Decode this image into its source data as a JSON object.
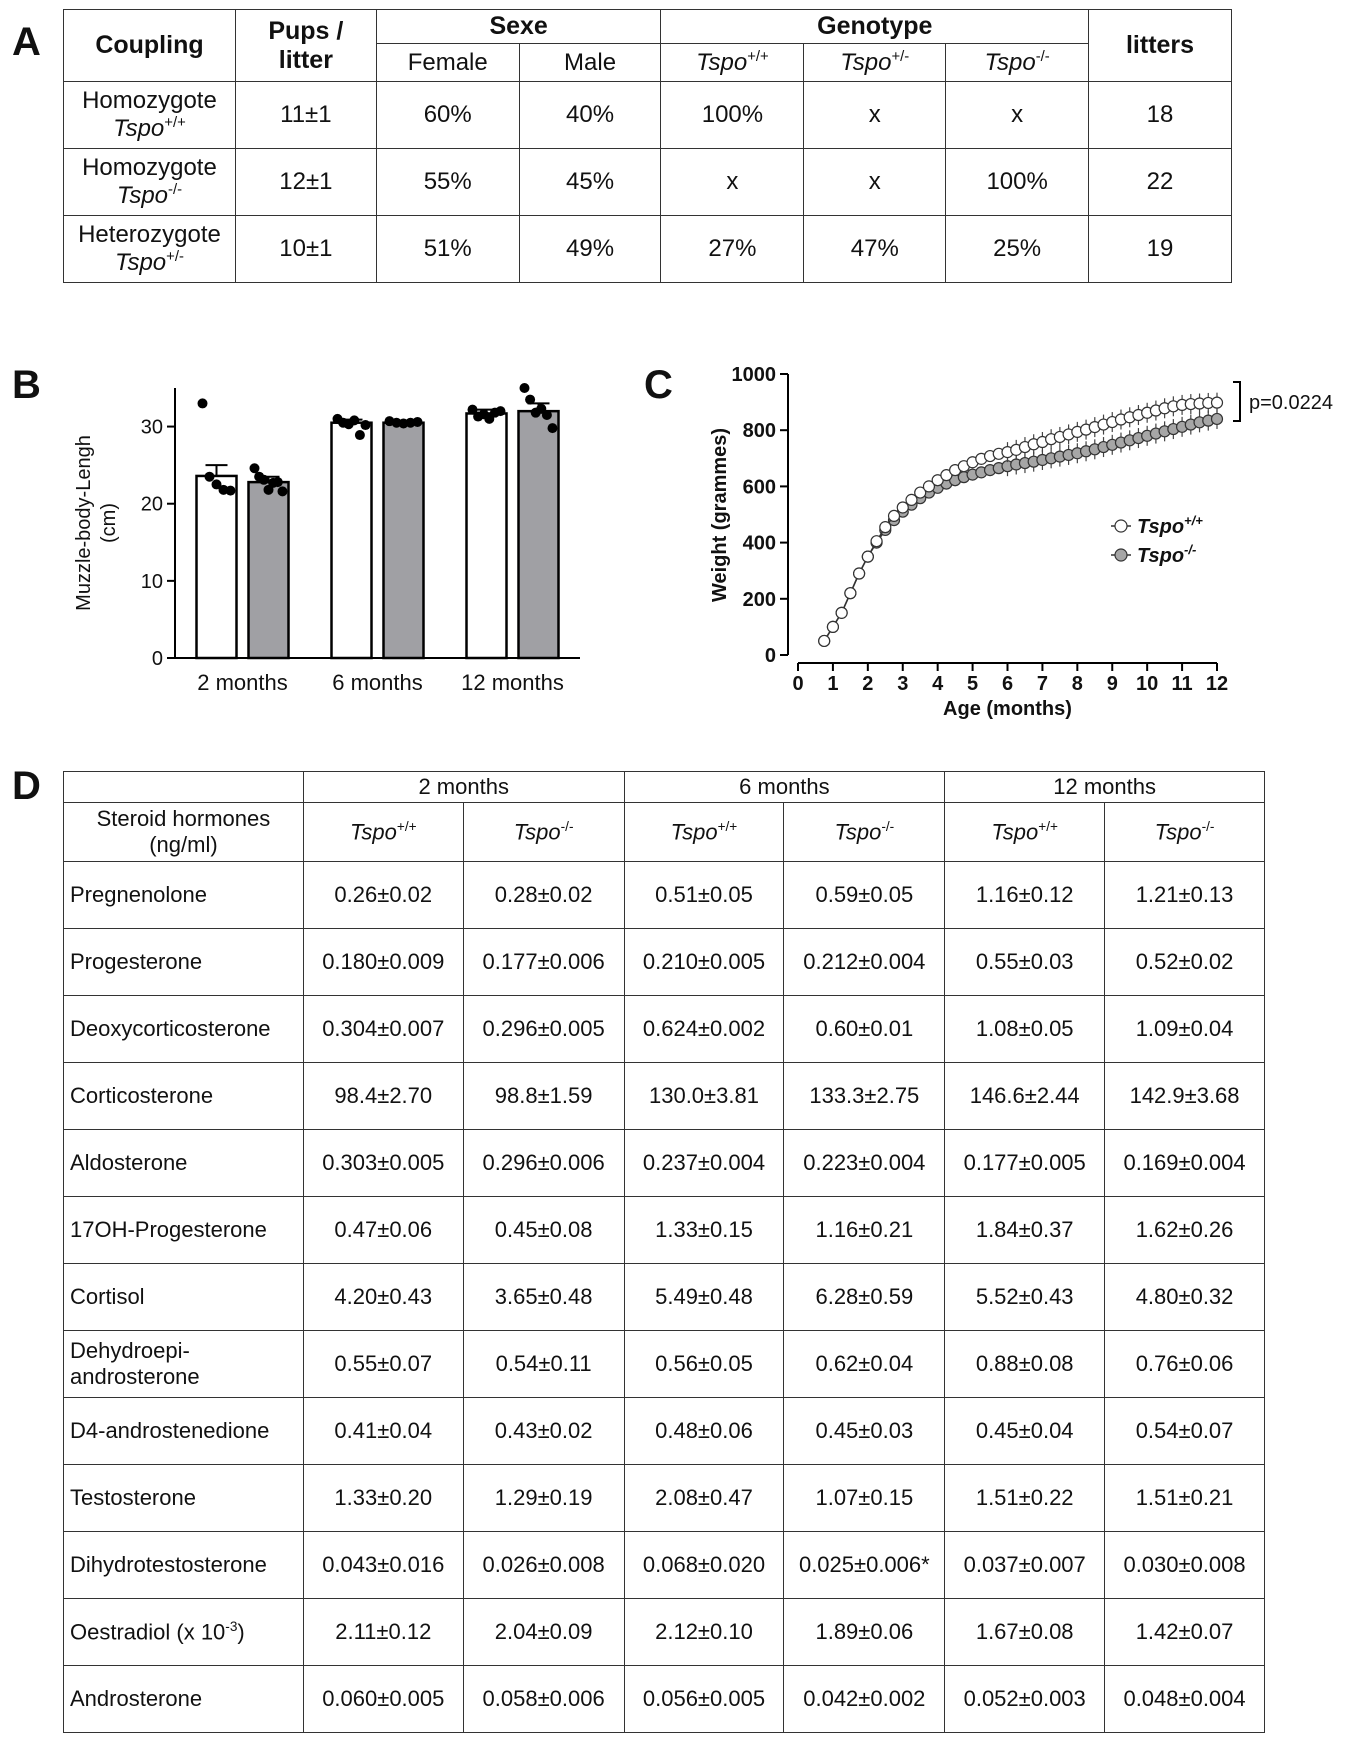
{
  "panels": {
    "a": "A",
    "b": "B",
    "c": "C",
    "d": "D"
  },
  "tableA": {
    "headers": {
      "coupling": "Coupling",
      "pups_line1": "Pups /",
      "pups_line2": "litter",
      "sexe": "Sexe",
      "female": "Female",
      "male": "Male",
      "genotype": "Genotype",
      "geno_wt": "Tspo",
      "geno_wt_sup": "+/+",
      "geno_het": "Tspo",
      "geno_het_sup": "+/-",
      "geno_ko": "Tspo",
      "geno_ko_sup": "-/-",
      "litters": "litters"
    },
    "rows": [
      {
        "line1": "Homozygote",
        "line2": "Tspo",
        "sup": "+/+",
        "pups": "11±1",
        "female": "60%",
        "male": "40%",
        "wt": "100%",
        "het": "x",
        "ko": "x",
        "litters": "18"
      },
      {
        "line1": "Homozygote",
        "line2": "Tspo",
        "sup": "-/-",
        "pups": "12±1",
        "female": "55%",
        "male": "45%",
        "wt": "x",
        "het": "x",
        "ko": "100%",
        "litters": "22"
      },
      {
        "line1": "Heterozygote",
        "line2": "Tspo",
        "sup": "+/-",
        "pups": "10±1",
        "female": "51%",
        "male": "49%",
        "wt": "27%",
        "het": "47%",
        "ko": "25%",
        "litters": "19"
      }
    ]
  },
  "chart_data": [
    {
      "type": "bar",
      "ylabel_line1": "Muzzle-body-Lengh",
      "ylabel_line2": "(cm)",
      "categories": [
        "2 months",
        "6 months",
        "12 months"
      ],
      "ylim": [
        0,
        35
      ],
      "yticks": [
        "0",
        "10",
        "20",
        "30"
      ],
      "series": [
        {
          "values": [
            23.6,
            30.5,
            31.7
          ],
          "errors": [
            1.4,
            0.4,
            0.5
          ],
          "color": "#ffffff",
          "points": [
            [
              33.0,
              23.5,
              22.5,
              21.8,
              21.7
            ],
            [
              31.0,
              30.5,
              30.3,
              30.8,
              28.9,
              30.2
            ],
            [
              32.2,
              31.3,
              31.6,
              31.0,
              31.8,
              32.0
            ]
          ]
        },
        {
          "values": [
            22.8,
            30.5,
            32.0
          ],
          "errors": [
            0.7,
            0.2,
            1.0
          ],
          "color": "#a0a0a4",
          "points": [
            [
              24.6,
              23.5,
              23.1,
              21.8,
              22.7,
              22.8,
              21.6
            ],
            [
              30.7,
              30.5,
              30.4,
              30.5,
              30.6
            ],
            [
              35.0,
              33.5,
              31.8,
              32.3,
              31.5,
              29.8
            ]
          ]
        }
      ]
    },
    {
      "type": "line",
      "xlabel": "Age (months)",
      "ylabel": "Weight (grammes)",
      "xlim": [
        0,
        12
      ],
      "ylim": [
        0,
        1000
      ],
      "xticks": [
        "0",
        "1",
        "2",
        "3",
        "4",
        "5",
        "6",
        "7",
        "8",
        "9",
        "10",
        "11",
        "12"
      ],
      "yticks": [
        "0",
        "200",
        "400",
        "600",
        "800",
        "1000"
      ],
      "annotation": "p=0.0224",
      "series": [
        {
          "name": "Tspo",
          "name_sup": "+/+",
          "fill": "#ffffff",
          "x": [
            0.75,
            1.0,
            1.25,
            1.5,
            1.75,
            2.0,
            2.25,
            2.5,
            2.75,
            3.0,
            3.25,
            3.5,
            3.75,
            4.0,
            4.25,
            4.5,
            4.75,
            5.0,
            5.25,
            5.5,
            5.75,
            6.0,
            6.25,
            6.5,
            6.75,
            7.0,
            7.25,
            7.5,
            7.75,
            8.0,
            8.25,
            8.5,
            8.75,
            9.0,
            9.25,
            9.5,
            9.75,
            10.0,
            10.25,
            10.5,
            10.75,
            11.0,
            11.25,
            11.5,
            11.75,
            12.0
          ],
          "y": [
            50,
            100,
            150,
            220,
            290,
            350,
            405,
            455,
            495,
            525,
            552,
            578,
            600,
            622,
            640,
            658,
            672,
            686,
            698,
            708,
            716,
            722,
            730,
            740,
            750,
            758,
            768,
            776,
            785,
            794,
            802,
            811,
            820,
            829,
            838,
            846,
            854,
            862,
            870,
            878,
            885,
            890,
            893,
            895,
            897,
            898
          ]
        },
        {
          "name": "Tspo",
          "name_sup": "-/-",
          "fill": "#a6a6a6",
          "x": [
            0.75,
            1.0,
            1.25,
            1.5,
            1.75,
            2.0,
            2.25,
            2.5,
            2.75,
            3.0,
            3.25,
            3.5,
            3.75,
            4.0,
            4.25,
            4.5,
            4.75,
            5.0,
            5.25,
            5.5,
            5.75,
            6.0,
            6.25,
            6.5,
            6.75,
            7.0,
            7.25,
            7.5,
            7.75,
            8.0,
            8.25,
            8.5,
            8.75,
            9.0,
            9.25,
            9.5,
            9.75,
            10.0,
            10.25,
            10.5,
            10.75,
            11.0,
            11.25,
            11.5,
            11.75,
            12.0
          ],
          "y": [
            50,
            100,
            150,
            220,
            290,
            350,
            400,
            445,
            480,
            510,
            535,
            558,
            578,
            595,
            610,
            622,
            633,
            642,
            650,
            658,
            665,
            672,
            678,
            683,
            688,
            694,
            700,
            706,
            712,
            718,
            725,
            732,
            740,
            748,
            756,
            764,
            772,
            780,
            788,
            796,
            804,
            812,
            820,
            828,
            834,
            840
          ]
        }
      ]
    }
  ],
  "tableD": {
    "groups": [
      "2 months",
      "6 months",
      "12 months"
    ],
    "rowhead_line1": "Steroid hormones",
    "rowhead_line2": "(ng/ml)",
    "geno": [
      {
        "name": "Tspo",
        "sup": "+/+"
      },
      {
        "name": "Tspo",
        "sup": "-/-"
      },
      {
        "name": "Tspo",
        "sup": "+/+"
      },
      {
        "name": "Tspo",
        "sup": "-/-"
      },
      {
        "name": "Tspo",
        "sup": "+/+"
      },
      {
        "name": "Tspo",
        "sup": "-/-"
      }
    ],
    "rows": [
      {
        "name": "Pregnenolone",
        "v": [
          "0.26±0.02",
          "0.28±0.02",
          "0.51±0.05",
          "0.59±0.05",
          "1.16±0.12",
          "1.21±0.13"
        ]
      },
      {
        "name": "Progesterone",
        "v": [
          "0.180±0.009",
          "0.177±0.006",
          "0.210±0.005",
          "0.212±0.004",
          "0.55±0.03",
          "0.52±0.02"
        ]
      },
      {
        "name": "Deoxycorticosterone",
        "v": [
          "0.304±0.007",
          "0.296±0.005",
          "0.624±0.002",
          "0.60±0.01",
          "1.08±0.05",
          "1.09±0.04"
        ]
      },
      {
        "name": "Corticosterone",
        "v": [
          "98.4±2.70",
          "98.8±1.59",
          "130.0±3.81",
          "133.3±2.75",
          "146.6±2.44",
          "142.9±3.68"
        ]
      },
      {
        "name": "Aldosterone",
        "v": [
          "0.303±0.005",
          "0.296±0.006",
          "0.237±0.004",
          "0.223±0.004",
          "0.177±0.005",
          "0.169±0.004"
        ]
      },
      {
        "name": "17OH-Progesterone",
        "v": [
          "0.47±0.06",
          "0.45±0.08",
          "1.33±0.15",
          "1.16±0.21",
          "1.84±0.37",
          "1.62±0.26"
        ]
      },
      {
        "name": "Cortisol",
        "v": [
          "4.20±0.43",
          "3.65±0.48",
          "5.49±0.48",
          "6.28±0.59",
          "5.52±0.43",
          "4.80±0.32"
        ]
      },
      {
        "name": "Dehydroepi-",
        "name2": "androsterone",
        "v": [
          "0.55±0.07",
          "0.54±0.11",
          "0.56±0.05",
          "0.62±0.04",
          "0.88±0.08",
          "0.76±0.06"
        ]
      },
      {
        "name": "D4-androstenedione",
        "v": [
          "0.41±0.04",
          "0.43±0.02",
          "0.48±0.06",
          "0.45±0.03",
          "0.45±0.04",
          "0.54±0.07"
        ]
      },
      {
        "name": "Testosterone",
        "v": [
          "1.33±0.20",
          "1.29±0.19",
          "2.08±0.47",
          "1.07±0.15",
          "1.51±0.22",
          "1.51±0.21"
        ]
      },
      {
        "name": "Dihydrotestosterone",
        "v": [
          "0.043±0.016",
          "0.026±0.008",
          "0.068±0.020",
          "0.025±0.006*",
          "0.037±0.007",
          "0.030±0.008"
        ]
      },
      {
        "name": "Oestradiol (x 10",
        "sup": "-3",
        "tail": ")",
        "v": [
          "2.11±0.12",
          "2.04±0.09",
          "2.12±0.10",
          "1.89±0.06",
          "1.67±0.08",
          "1.42±0.07"
        ]
      },
      {
        "name": "Androsterone",
        "v": [
          "0.060±0.005",
          "0.058±0.006",
          "0.056±0.005",
          "0.042±0.002",
          "0.052±0.003",
          "0.048±0.004"
        ]
      }
    ]
  }
}
